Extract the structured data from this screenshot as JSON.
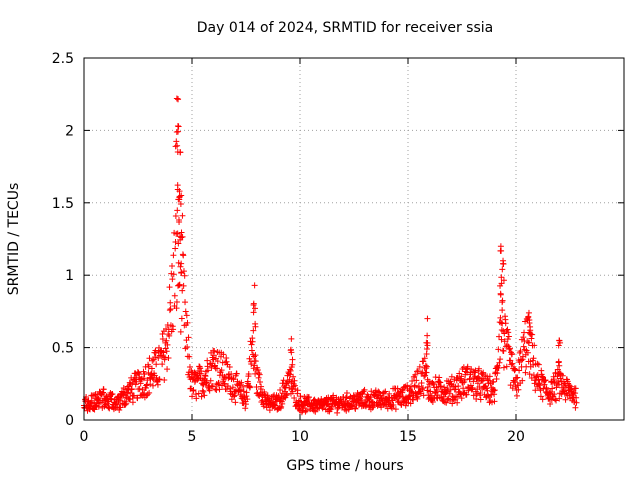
{
  "chart_data": {
    "type": "scatter",
    "title": "Day 014 of 2024, SRMTID for receiver ssia",
    "xlabel": "GPS time / hours",
    "ylabel": "SRMTID / TECUs",
    "xlim": [
      0,
      25
    ],
    "ylim": [
      0,
      2.5
    ],
    "x_ticks": [
      0,
      5,
      10,
      15,
      20
    ],
    "y_ticks": [
      0,
      0.5,
      1,
      1.5,
      2,
      2.5
    ],
    "x_tick_labels": [
      "0",
      "5",
      "10",
      "15",
      "20"
    ],
    "y_tick_labels": [
      "0",
      "0.5",
      "1",
      "1.5",
      "2",
      "2.5"
    ],
    "grid": true,
    "marker": "+",
    "series_color": "#ff0000",
    "profile": [
      [
        0.0,
        0.12
      ],
      [
        0.5,
        0.15
      ],
      [
        1.0,
        0.16
      ],
      [
        1.5,
        0.13
      ],
      [
        2.0,
        0.2
      ],
      [
        2.5,
        0.26
      ],
      [
        3.0,
        0.33
      ],
      [
        3.5,
        0.4
      ],
      [
        3.8,
        0.55
      ],
      [
        4.0,
        0.8
      ],
      [
        4.2,
        1.1
      ],
      [
        4.4,
        1.25
      ],
      [
        4.6,
        0.9
      ],
      [
        4.8,
        0.5
      ],
      [
        5.0,
        0.25
      ],
      [
        5.5,
        0.3
      ],
      [
        6.0,
        0.42
      ],
      [
        6.5,
        0.35
      ],
      [
        7.0,
        0.25
      ],
      [
        7.5,
        0.15
      ],
      [
        7.8,
        0.55
      ],
      [
        8.0,
        0.3
      ],
      [
        8.5,
        0.12
      ],
      [
        9.0,
        0.13
      ],
      [
        9.5,
        0.3
      ],
      [
        10.0,
        0.12
      ],
      [
        11.0,
        0.11
      ],
      [
        12.0,
        0.13
      ],
      [
        13.0,
        0.15
      ],
      [
        14.0,
        0.15
      ],
      [
        15.0,
        0.18
      ],
      [
        15.8,
        0.35
      ],
      [
        16.0,
        0.22
      ],
      [
        17.0,
        0.22
      ],
      [
        17.8,
        0.3
      ],
      [
        18.5,
        0.25
      ],
      [
        19.0,
        0.2
      ],
      [
        19.3,
        0.75
      ],
      [
        19.5,
        0.55
      ],
      [
        20.0,
        0.25
      ],
      [
        20.5,
        0.6
      ],
      [
        21.0,
        0.3
      ],
      [
        21.5,
        0.2
      ],
      [
        22.0,
        0.27
      ],
      [
        22.7,
        0.18
      ]
    ],
    "peaks": [
      {
        "x": 4.3,
        "y": 2.22
      },
      {
        "x": 4.35,
        "y": 2.03
      },
      {
        "x": 4.45,
        "y": 1.85
      },
      {
        "x": 4.5,
        "y": 1.55
      },
      {
        "x": 7.9,
        "y": 0.93
      },
      {
        "x": 9.6,
        "y": 0.56
      },
      {
        "x": 15.9,
        "y": 0.7
      },
      {
        "x": 19.3,
        "y": 1.2
      },
      {
        "x": 19.4,
        "y": 1.1
      },
      {
        "x": 20.6,
        "y": 0.74
      },
      {
        "x": 22.0,
        "y": 0.55
      }
    ],
    "x_end": 22.8,
    "num_points": 1400
  }
}
